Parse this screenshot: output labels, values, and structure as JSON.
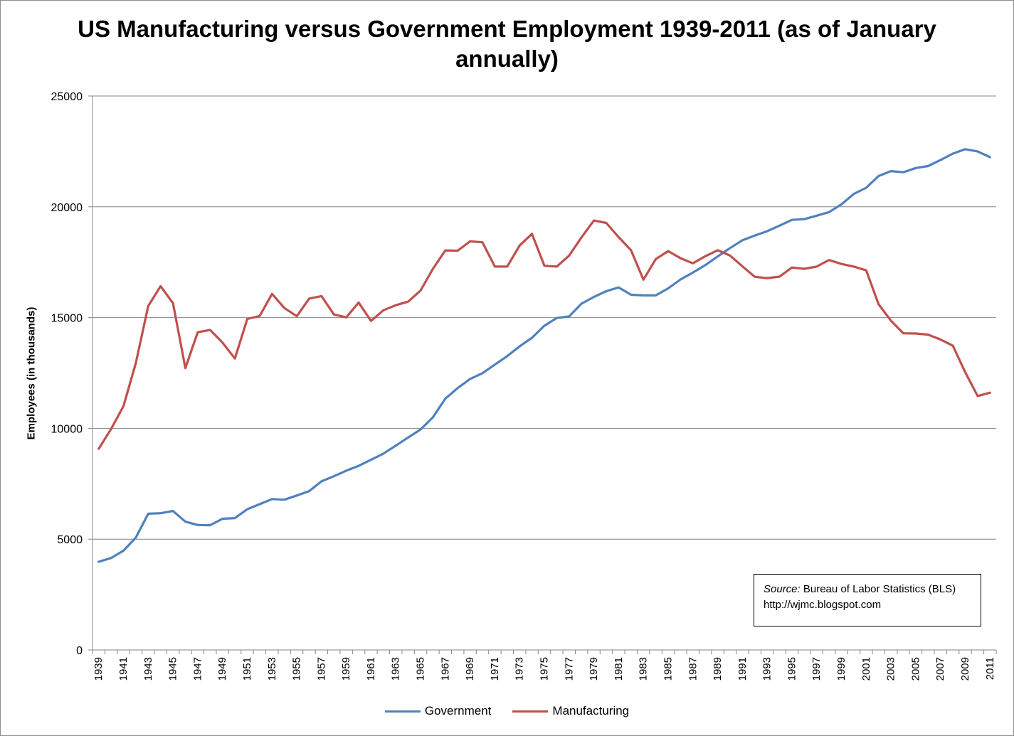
{
  "chart_data": {
    "type": "line",
    "title": "US Manufacturing versus Government Employment 1939-2011 (as of January annually)",
    "ylabel": "Employees (in thousands)",
    "xlabel": "",
    "ylim": [
      0,
      25000
    ],
    "yticks": [
      "0",
      "5000",
      "10000",
      "15000",
      "20000",
      "25000"
    ],
    "xtick_labels": [
      "1939",
      "1941",
      "1943",
      "1945",
      "1947",
      "1949",
      "1951",
      "1953",
      "1955",
      "1957",
      "1959",
      "1961",
      "1963",
      "1965",
      "1967",
      "1969",
      "1971",
      "1973",
      "1975",
      "1977",
      "1979",
      "1981",
      "1983",
      "1985",
      "1987",
      "1989",
      "1991",
      "1993",
      "1995",
      "1997",
      "1999",
      "2001",
      "2003",
      "2005",
      "2007",
      "2009",
      "2011"
    ],
    "grid": "horizontal",
    "legend_position": "bottom",
    "x": [
      1939,
      1940,
      1941,
      1942,
      1943,
      1944,
      1945,
      1946,
      1947,
      1948,
      1949,
      1950,
      1951,
      1952,
      1953,
      1954,
      1955,
      1956,
      1957,
      1958,
      1959,
      1960,
      1961,
      1962,
      1963,
      1964,
      1965,
      1966,
      1967,
      1968,
      1969,
      1970,
      1971,
      1972,
      1973,
      1974,
      1975,
      1976,
      1977,
      1978,
      1979,
      1980,
      1981,
      1982,
      1983,
      1984,
      1985,
      1986,
      1987,
      1988,
      1989,
      1990,
      1991,
      1992,
      1993,
      1994,
      1995,
      1996,
      1997,
      1998,
      1999,
      2000,
      2001,
      2002,
      2003,
      2004,
      2005,
      2006,
      2007,
      2008,
      2009,
      2010,
      2011
    ],
    "series": [
      {
        "name": "Government",
        "color": "#4f81bd",
        "values": [
          3980,
          4150,
          4480,
          5070,
          6150,
          6170,
          6270,
          5790,
          5640,
          5630,
          5920,
          5950,
          6350,
          6580,
          6810,
          6780,
          6970,
          7170,
          7610,
          7840,
          8090,
          8310,
          8580,
          8860,
          9220,
          9590,
          9950,
          10500,
          11340,
          11820,
          12230,
          12490,
          12880,
          13260,
          13700,
          14090,
          14630,
          14980,
          15050,
          15630,
          15930,
          16190,
          16360,
          16030,
          16000,
          16000,
          16320,
          16720,
          17030,
          17370,
          17760,
          18140,
          18490,
          18700,
          18900,
          19150,
          19410,
          19440,
          19600,
          19760,
          20110,
          20580,
          20860,
          21390,
          21610,
          21560,
          21750,
          21840,
          22110,
          22400,
          22600,
          22500,
          22240
        ]
      },
      {
        "name": "Manufacturing",
        "color": "#c0504d",
        "values": [
          9080,
          9970,
          11000,
          12950,
          15520,
          16420,
          15650,
          12720,
          14340,
          14440,
          13870,
          13150,
          14940,
          15070,
          16070,
          15430,
          15060,
          15860,
          15970,
          15140,
          15010,
          15680,
          14850,
          15330,
          15560,
          15720,
          16220,
          17200,
          18030,
          18020,
          18440,
          18400,
          17300,
          17300,
          18250,
          18780,
          17340,
          17300,
          17800,
          18620,
          19380,
          19270,
          18630,
          18040,
          16710,
          17640,
          18000,
          17680,
          17450,
          17770,
          18040,
          17800,
          17310,
          16840,
          16780,
          16850,
          17260,
          17200,
          17300,
          17600,
          17420,
          17300,
          17130,
          15600,
          14860,
          14290,
          14280,
          14230,
          14010,
          13730,
          12530,
          11460,
          11610
        ]
      }
    ],
    "annotation": {
      "source_label": "Source:",
      "source_text": " Bureau of Labor Statistics (BLS)",
      "url": "http://wjmc.blogspot.com"
    }
  }
}
